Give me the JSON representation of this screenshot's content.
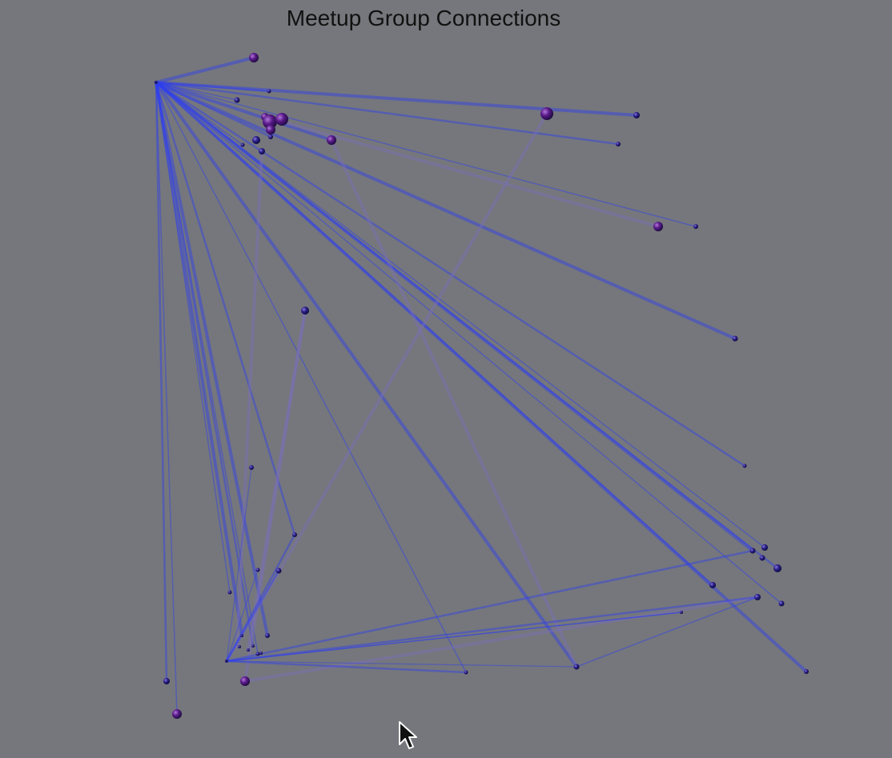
{
  "title": "Meetup Group Connections",
  "colors": {
    "background": "#75777c",
    "edge_strong": "#2f3df0",
    "edge_faint": "#7a6fb8",
    "node": "#1f1a6e",
    "node_large": "#4a1a7a"
  },
  "icons": {
    "cursor": "mouse-pointer-icon"
  }
}
